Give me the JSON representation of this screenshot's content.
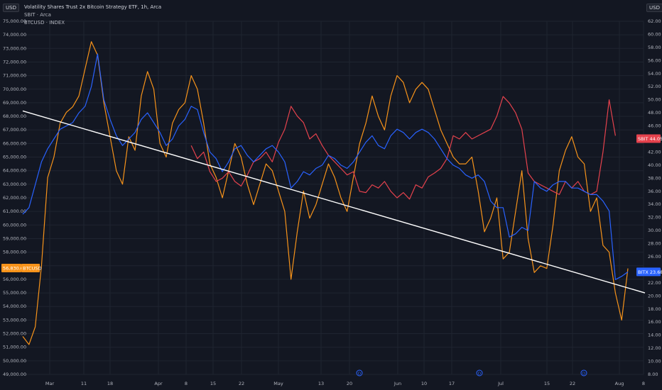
{
  "legend": {
    "title": "Volatility Shares Trust 2x Bitcoin Strategy ETF, 1h, Arca",
    "line2": "SBIT · Arca",
    "line3": "BTCUSD · INDEX"
  },
  "units": {
    "left": "USD",
    "right": "USD"
  },
  "colors": {
    "bg": "#131722",
    "grid": "#1f2430",
    "btc": "#f7931a",
    "sbit": "#e5424d",
    "bitx": "#2962ff",
    "trend": "#ffffff"
  },
  "chart_data": {
    "type": "line",
    "x_labels": [
      "Mar",
      "11",
      "18",
      "Apr",
      "8",
      "15",
      "22",
      "May",
      "13",
      "20",
      "Jun",
      "10",
      "17",
      "Jul",
      "15",
      "22",
      "Aug",
      "8"
    ],
    "left_axis": {
      "min": 49000,
      "max": 75000,
      "step": 1000,
      "ticks": [
        "49,000.00",
        "50,000.00",
        "51,000.00",
        "52,000.00",
        "53,000.00",
        "54,000.00",
        "55,000.00",
        "56,000.00",
        "57,000.00",
        "58,000.00",
        "59,000.00",
        "60,000.00",
        "61,000.00",
        "62,000.00",
        "63,000.00",
        "64,000.00",
        "65,000.00",
        "66,000.00",
        "67,000.00",
        "68,000.00",
        "69,000.00",
        "70,000.00",
        "71,000.00",
        "72,000.00",
        "73,000.00",
        "74,000.00",
        "75,000.00"
      ]
    },
    "right_axis": {
      "min": 8,
      "max": 62,
      "step": 2,
      "ticks": [
        "8.00",
        "10.00",
        "12.00",
        "14.00",
        "16.00",
        "18.00",
        "20.00",
        "22.00",
        "24.00",
        "26.00",
        "28.00",
        "30.00",
        "32.00",
        "34.00",
        "36.00",
        "38.00",
        "40.00",
        "42.00",
        "44.00",
        "46.00",
        "48.00",
        "50.00",
        "52.00",
        "54.00",
        "56.00",
        "58.00",
        "60.00",
        "62.00"
      ]
    },
    "series": [
      {
        "name": "BTCUSD",
        "axis": "left",
        "color": "#f7931a",
        "values": [
          51800,
          51200,
          52500,
          57000,
          63500,
          65000,
          67500,
          68300,
          68700,
          69500,
          71500,
          73500,
          72500,
          69000,
          66500,
          64000,
          63000,
          66500,
          65500,
          69500,
          71300,
          70000,
          66000,
          65000,
          67500,
          68500,
          69000,
          71000,
          70000,
          67500,
          64500,
          63500,
          62000,
          64000,
          66000,
          65000,
          63000,
          61500,
          63000,
          64500,
          64000,
          62500,
          61000,
          56000,
          59500,
          62500,
          60500,
          61500,
          63000,
          64500,
          63500,
          62000,
          61000,
          63500,
          66000,
          67500,
          69500,
          68000,
          67000,
          69500,
          71000,
          70500,
          69000,
          70000,
          70500,
          70000,
          68500,
          67000,
          66000,
          65000,
          64500,
          64500,
          65000,
          62500,
          59500,
          60500,
          62000,
          57500,
          58000,
          61000,
          64000,
          59000,
          56500,
          57000,
          56800,
          60000,
          64000,
          65500,
          66500,
          65000,
          64500,
          61000,
          62000,
          58500,
          58000,
          55000,
          53000,
          56800
        ]
      },
      {
        "name": "SBIT",
        "axis": "right",
        "color": "#e5424d",
        "values": [
          null,
          null,
          null,
          null,
          null,
          null,
          null,
          null,
          null,
          null,
          null,
          null,
          null,
          null,
          null,
          null,
          null,
          null,
          null,
          null,
          null,
          null,
          null,
          null,
          null,
          null,
          null,
          43000,
          41000,
          42000,
          39000,
          37500,
          38000,
          39000,
          37500,
          36800,
          38500,
          40500,
          41000,
          42000,
          40500,
          43500,
          45500,
          49000,
          47500,
          46500,
          44000,
          44800,
          43000,
          41500,
          40500,
          39500,
          38500,
          39000,
          36000,
          35800,
          37000,
          36500,
          37500,
          36000,
          35000,
          35800,
          34800,
          37000,
          36500,
          38200,
          38800,
          39500,
          41000,
          44500,
          44000,
          45000,
          44000,
          44500,
          45000,
          45500,
          47500,
          50500,
          49500,
          48000,
          45500,
          38800,
          37500,
          37000,
          36500,
          36000,
          35500,
          37500,
          36500,
          37500,
          36000,
          35500,
          36000,
          42000,
          50000,
          44500,
          null,
          null
        ]
      },
      {
        "name": "BITX",
        "axis": "right",
        "color": "#2962ff",
        "values": [
          32500,
          33500,
          37000,
          40500,
          42500,
          44000,
          45500,
          46000,
          46500,
          48000,
          49000,
          52000,
          57000,
          50000,
          47000,
          44500,
          43000,
          44000,
          45000,
          47000,
          48000,
          46500,
          45000,
          43000,
          44000,
          46000,
          47000,
          49000,
          48500,
          45000,
          42000,
          41000,
          39000,
          40500,
          42500,
          43000,
          41500,
          40500,
          41500,
          42500,
          43000,
          42000,
          40500,
          36500,
          37500,
          39000,
          38500,
          39500,
          40000,
          41500,
          41000,
          40000,
          39500,
          40500,
          42000,
          43500,
          44500,
          43000,
          42500,
          44500,
          45500,
          45000,
          44000,
          45000,
          45500,
          45000,
          44000,
          42500,
          41000,
          40000,
          39500,
          38500,
          38000,
          38500,
          37500,
          34500,
          33500,
          33500,
          29000,
          29500,
          30500,
          30000,
          37500,
          36500,
          36000,
          37000,
          37500,
          37500,
          36500,
          36500,
          36000,
          35500,
          35500,
          34500,
          33000,
          22500,
          23000,
          23680
        ]
      },
      {
        "name": "",
        "axis": "left",
        "color": "#ffffff",
        "type": "trendline",
        "values": [
          68400,
          55000
        ]
      }
    ]
  },
  "tags": {
    "btc": {
      "label": "BTCUSD",
      "value": "56,830.69",
      "color": "#f7931a"
    },
    "sbit": {
      "label": "SBIT",
      "value": "44.05",
      "color": "#e5424d"
    },
    "bitx": {
      "label": "BITX",
      "value": "23.68",
      "color": "#2962ff"
    }
  },
  "event_markers": [
    "D",
    "D",
    "D"
  ]
}
